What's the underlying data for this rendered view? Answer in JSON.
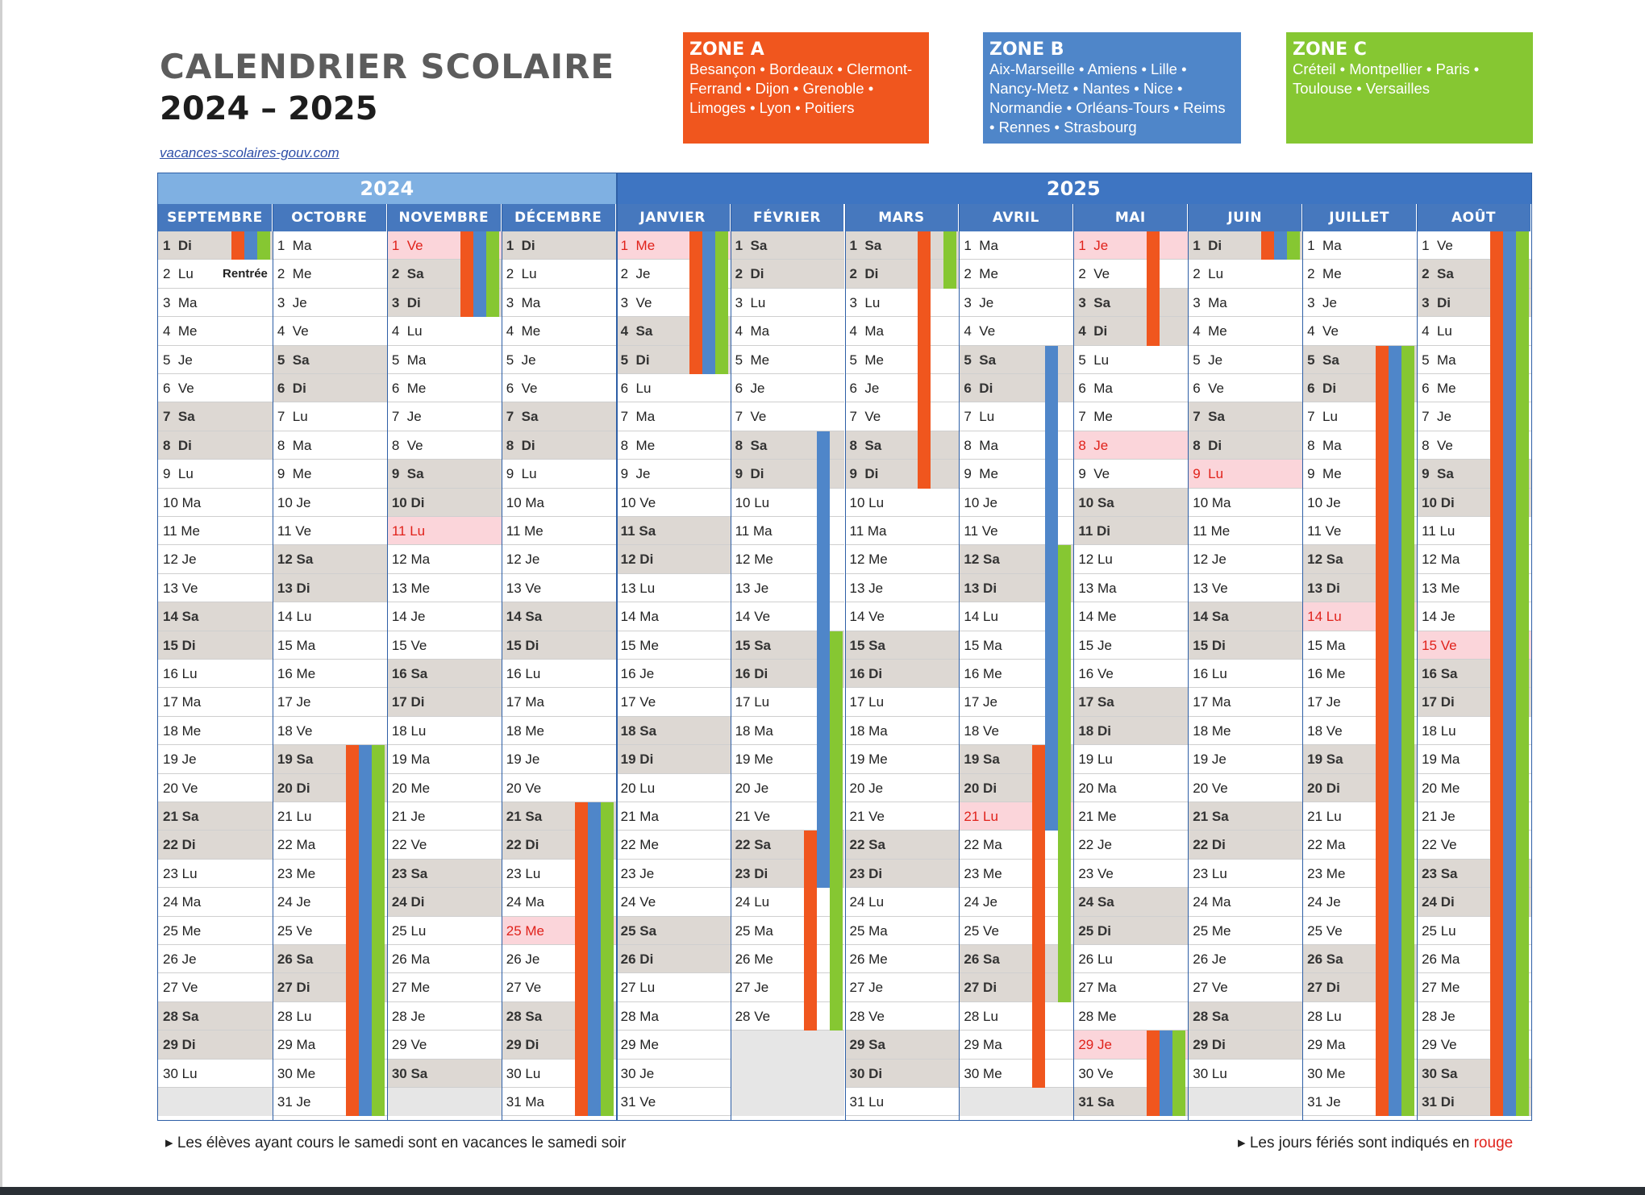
{
  "header": {
    "title_line1": "CALENDRIER SCOLAIRE",
    "title_line2": "2024 – 2025",
    "website": "vacances-scolaires-gouv.com"
  },
  "zones": [
    {
      "name": "ZONE A",
      "cities": "Besançon • Bordeaux • Clermont-Ferrand • Dijon • Grenoble • Limoges • Lyon • Poitiers",
      "color": "#f0561e"
    },
    {
      "name": "ZONE B",
      "cities": "Aix-Marseille • Amiens • Lille • Nancy-Metz • Nantes • Nice • Normandie • Orléans-Tours • Reims • Rennes • Strasbourg",
      "color": "#4f86c9"
    },
    {
      "name": "ZONE C",
      "cities": "Créteil • Montpellier • Paris • Toulouse • Versailles",
      "color": "#86c732"
    }
  ],
  "calendar": {
    "years": [
      "2024",
      "2025"
    ],
    "rentree_label": "Rentrée",
    "months": [
      {
        "name": "SEPTEMBRE",
        "year": 2024,
        "month": 9
      },
      {
        "name": "OCTOBRE",
        "year": 2024,
        "month": 10
      },
      {
        "name": "NOVEMBRE",
        "year": 2024,
        "month": 11
      },
      {
        "name": "DÉCEMBRE",
        "year": 2024,
        "month": 12
      },
      {
        "name": "JANVIER",
        "year": 2025,
        "month": 1
      },
      {
        "name": "FÉVRIER",
        "year": 2025,
        "month": 2
      },
      {
        "name": "MARS",
        "year": 2025,
        "month": 3
      },
      {
        "name": "AVRIL",
        "year": 2025,
        "month": 4
      },
      {
        "name": "MAI",
        "year": 2025,
        "month": 5
      },
      {
        "name": "JUIN",
        "year": 2025,
        "month": 6
      },
      {
        "name": "JUILLET",
        "year": 2025,
        "month": 7
      },
      {
        "name": "AOÛT",
        "year": 2025,
        "month": 8
      }
    ],
    "day_abbreviations": [
      "Di",
      "Lu",
      "Ma",
      "Me",
      "Je",
      "Ve",
      "Sa"
    ],
    "holidays": [
      "2024-11-01",
      "2024-11-11",
      "2024-12-25",
      "2025-01-01",
      "2025-04-21",
      "2025-05-01",
      "2025-05-08",
      "2025-05-29",
      "2025-06-09",
      "2025-07-14",
      "2025-08-15"
    ],
    "vacations": [
      {
        "zone": "A",
        "from": "2024-09-01",
        "to": "2024-09-01"
      },
      {
        "zone": "B",
        "from": "2024-09-01",
        "to": "2024-09-01"
      },
      {
        "zone": "C",
        "from": "2024-09-01",
        "to": "2024-09-01"
      },
      {
        "zone": "A",
        "from": "2024-10-19",
        "to": "2024-11-03"
      },
      {
        "zone": "B",
        "from": "2024-10-19",
        "to": "2024-11-03"
      },
      {
        "zone": "C",
        "from": "2024-10-19",
        "to": "2024-11-03"
      },
      {
        "zone": "A",
        "from": "2024-12-21",
        "to": "2025-01-05"
      },
      {
        "zone": "B",
        "from": "2024-12-21",
        "to": "2025-01-05"
      },
      {
        "zone": "C",
        "from": "2024-12-21",
        "to": "2025-01-05"
      },
      {
        "zone": "A",
        "from": "2025-02-22",
        "to": "2025-03-09"
      },
      {
        "zone": "B",
        "from": "2025-02-08",
        "to": "2025-02-23"
      },
      {
        "zone": "C",
        "from": "2025-02-15",
        "to": "2025-03-02"
      },
      {
        "zone": "A",
        "from": "2025-04-19",
        "to": "2025-05-04"
      },
      {
        "zone": "B",
        "from": "2025-04-05",
        "to": "2025-04-21"
      },
      {
        "zone": "C",
        "from": "2025-04-12",
        "to": "2025-04-27"
      },
      {
        "zone": "A",
        "from": "2025-05-29",
        "to": "2025-06-01"
      },
      {
        "zone": "B",
        "from": "2025-05-29",
        "to": "2025-06-01"
      },
      {
        "zone": "C",
        "from": "2025-05-29",
        "to": "2025-06-01"
      },
      {
        "zone": "A",
        "from": "2025-07-05",
        "to": "2025-08-31"
      },
      {
        "zone": "B",
        "from": "2025-07-05",
        "to": "2025-08-31"
      },
      {
        "zone": "C",
        "from": "2025-07-05",
        "to": "2025-08-31"
      }
    ]
  },
  "footer": {
    "left_note": "Les élèves ayant cours le samedi sont en vacances le samedi soir",
    "right_note_prefix": "Les jours fériés sont indiqués en",
    "right_note_red": "rouge"
  }
}
